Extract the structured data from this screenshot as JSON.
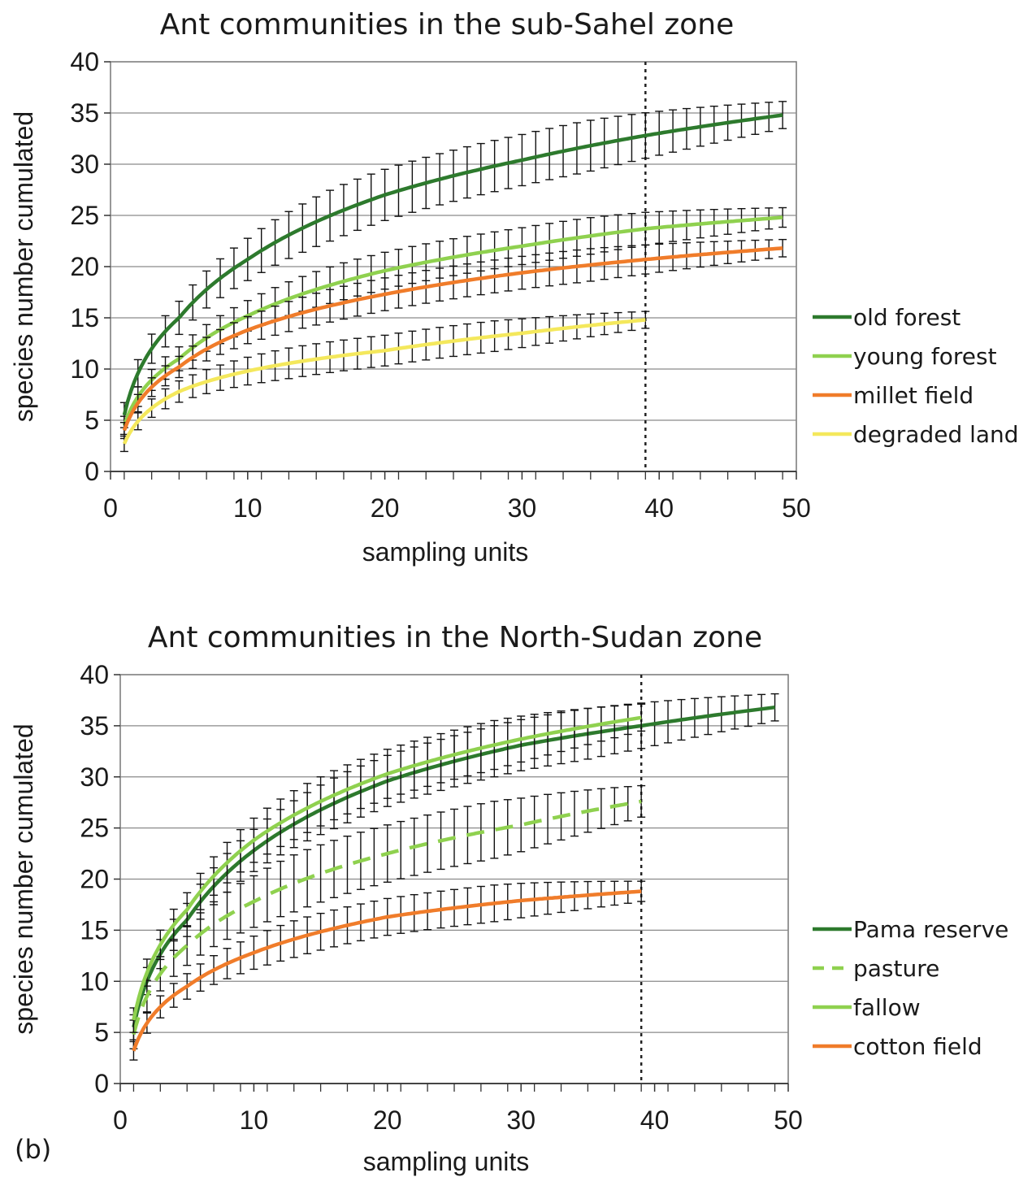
{
  "panel_label": "(b)",
  "chart_data": [
    {
      "type": "line",
      "title": "Ant communities in the sub-Sahel zone",
      "xlabel": "sampling units",
      "ylabel": "species number cumulated",
      "xlim": [
        0,
        50
      ],
      "ylim": [
        0,
        40
      ],
      "xticks": [
        0,
        10,
        20,
        30,
        40,
        50
      ],
      "yticks": [
        0,
        5,
        10,
        15,
        20,
        25,
        30,
        35,
        40
      ],
      "grid": "horizontal",
      "legend": "right",
      "error_bars": true,
      "reference_line_x": 39,
      "series": [
        {
          "name": "old forest",
          "color": "#2d7a2d",
          "dash": false,
          "x_max": 49,
          "y_at_1": 5.5,
          "y_at_end": 34.8,
          "points": [
            [
              1,
              5.5
            ],
            [
              5,
              15.0
            ],
            [
              10,
              20.7
            ],
            [
              20,
              27.0
            ],
            [
              30,
              30.4
            ],
            [
              39,
              32.8
            ],
            [
              49,
              34.8
            ]
          ],
          "error": 2.5
        },
        {
          "name": "young forest",
          "color": "#8fd14f",
          "dash": false,
          "x_max": 49,
          "y_at_1": 4.5,
          "y_at_end": 24.8,
          "points": [
            [
              1,
              4.5
            ],
            [
              5,
              11.0
            ],
            [
              10,
              15.2
            ],
            [
              20,
              19.6
            ],
            [
              30,
              22.0
            ],
            [
              39,
              23.7
            ],
            [
              49,
              24.8
            ]
          ],
          "error": 1.8
        },
        {
          "name": "millet field",
          "color": "#f07c2a",
          "dash": false,
          "x_max": 49,
          "y_at_1": 4.0,
          "y_at_end": 21.8,
          "points": [
            [
              1,
              4.0
            ],
            [
              5,
              10.2
            ],
            [
              10,
              13.8
            ],
            [
              20,
              17.3
            ],
            [
              30,
              19.4
            ],
            [
              39,
              20.7
            ],
            [
              49,
              21.8
            ]
          ],
          "error": 1.6
        },
        {
          "name": "degraded land",
          "color": "#f4e85c",
          "dash": false,
          "x_max": 39,
          "y_at_1": 2.7,
          "y_at_end": 14.8,
          "points": [
            [
              1,
              2.7
            ],
            [
              5,
              7.8
            ],
            [
              10,
              9.8
            ],
            [
              20,
              11.8
            ],
            [
              30,
              13.5
            ],
            [
              39,
              14.8
            ]
          ],
          "error": 1.5
        }
      ]
    },
    {
      "type": "line",
      "title": "Ant communities in the North-Sudan zone",
      "xlabel": "sampling units",
      "ylabel": "species number cumulated",
      "xlim": [
        0,
        50
      ],
      "ylim": [
        0,
        40
      ],
      "xticks": [
        0,
        10,
        20,
        30,
        40,
        50
      ],
      "yticks": [
        0,
        5,
        10,
        15,
        20,
        25,
        30,
        35,
        40
      ],
      "grid": "horizontal",
      "legend": "right",
      "error_bars": true,
      "reference_line_x": 39,
      "series": [
        {
          "name": "Pama reserve",
          "color": "#2d7a2d",
          "dash": false,
          "x_max": 49,
          "y_at_1": 5.5,
          "y_at_end": 36.8,
          "points": [
            [
              1,
              5.5
            ],
            [
              5,
              16.0
            ],
            [
              10,
              22.8
            ],
            [
              20,
              29.6
            ],
            [
              30,
              33.1
            ],
            [
              39,
              35.0
            ],
            [
              49,
              36.8
            ]
          ],
          "error": 2.5
        },
        {
          "name": "pasture",
          "color": "#8fd14f",
          "dash": true,
          "x_max": 39,
          "y_at_1": 4.8,
          "y_at_end": 27.6,
          "points": [
            [
              1,
              4.8
            ],
            [
              5,
              13.5
            ],
            [
              10,
              17.8
            ],
            [
              20,
              22.5
            ],
            [
              30,
              25.3
            ],
            [
              39,
              27.6
            ]
          ],
          "error": 2.8
        },
        {
          "name": "fallow",
          "color": "#8fd14f",
          "dash": false,
          "x_max": 39,
          "y_at_1": 6.2,
          "y_at_end": 35.8,
          "points": [
            [
              1,
              6.2
            ],
            [
              5,
              17.0
            ],
            [
              10,
              23.8
            ],
            [
              20,
              30.3
            ],
            [
              30,
              33.7
            ],
            [
              39,
              35.8
            ]
          ],
          "error": 2.4
        },
        {
          "name": "cotton field",
          "color": "#f07c2a",
          "dash": false,
          "x_max": 39,
          "y_at_1": 3.2,
          "y_at_end": 18.8,
          "points": [
            [
              1,
              3.2
            ],
            [
              5,
              9.5
            ],
            [
              10,
              12.8
            ],
            [
              20,
              16.3
            ],
            [
              30,
              17.9
            ],
            [
              39,
              18.8
            ]
          ],
          "error": 1.8
        }
      ]
    }
  ]
}
